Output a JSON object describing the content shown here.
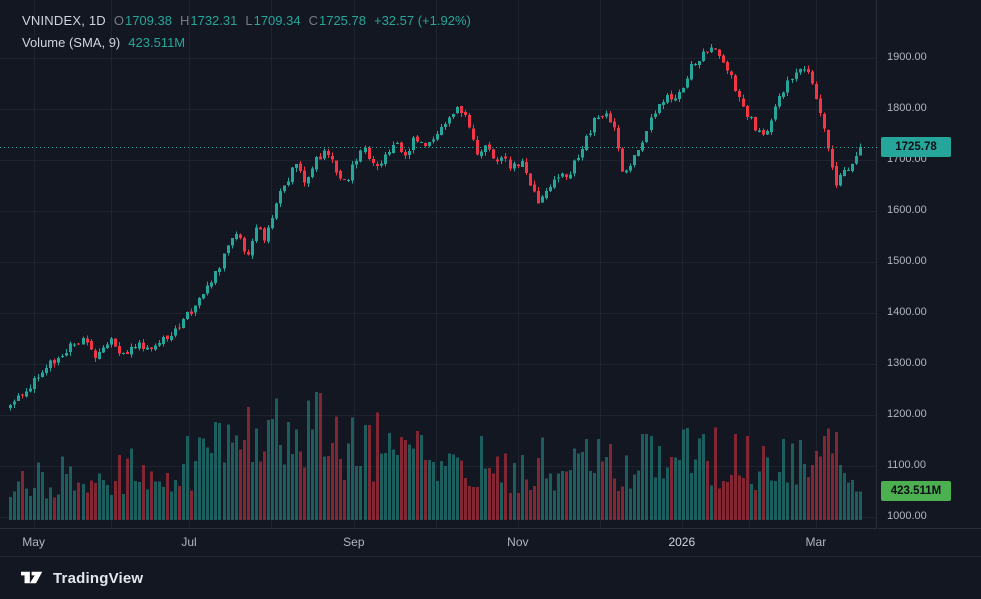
{
  "legend": {
    "title": "VNINDEX, 1D",
    "ohlc": [
      {
        "label": "O",
        "value": "1709.38"
      },
      {
        "label": "H",
        "value": "1732.31"
      },
      {
        "label": "L",
        "value": "1709.34"
      },
      {
        "label": "C",
        "value": "1725.78"
      }
    ],
    "change": "+32.57 (+1.92%)",
    "volume_title": "Volume (SMA, 9)",
    "volume_value": "423.511M"
  },
  "badges": {
    "price": "1725.78",
    "volume": "423.511M"
  },
  "footer": {
    "brand": "TradingView"
  },
  "colors": {
    "bg": "#131722",
    "up": "#26a69a",
    "down": "#f23645",
    "vol_up": "rgba(38,166,154,0.5)",
    "vol_down": "rgba(242,54,69,0.5)",
    "grid": "#1e2330",
    "border": "#2a2e39",
    "axis_text": "#b2b5be",
    "text": "#d1d4dc",
    "muted": "#787b86",
    "value_green": "#26a69a",
    "price_badge_bg": "#26a69a",
    "volume_badge_bg": "#4caf50",
    "badge_text": "#0b0e14"
  },
  "chart_data": {
    "type": "candlestick",
    "symbol": "VNINDEX",
    "interval": "1D",
    "title": "VNINDEX, 1D",
    "legend_position": "top-left",
    "grid": true,
    "last": {
      "open": 1709.38,
      "high": 1732.31,
      "low": 1709.34,
      "close": 1725.78,
      "change": 32.57,
      "change_pct": 1.92
    },
    "volume_sma": {
      "length": 9,
      "value_label": "423.511M"
    },
    "ylim": [
      978,
      2014
    ],
    "y_ticks": [
      1900,
      1800,
      1700,
      1600,
      1500,
      1400,
      1300,
      1200,
      1100,
      1000
    ],
    "x_ticks": [
      {
        "label": "May",
        "t": 0.03
      },
      {
        "label": "Jul",
        "t": 0.212
      },
      {
        "label": "Sep",
        "t": 0.405
      },
      {
        "label": "Nov",
        "t": 0.597
      },
      {
        "label": "2026",
        "t": 0.789,
        "year": true
      },
      {
        "label": "Mar",
        "t": 0.946
      }
    ],
    "last_price_line": 1725.78,
    "num_candles": 212,
    "seed": 5,
    "noise": 8.5,
    "wick": 8,
    "price_path": [
      [
        0.0,
        1216
      ],
      [
        0.02,
        1252
      ],
      [
        0.042,
        1290
      ],
      [
        0.065,
        1328
      ],
      [
        0.085,
        1346
      ],
      [
        0.1,
        1312
      ],
      [
        0.118,
        1342
      ],
      [
        0.132,
        1316
      ],
      [
        0.148,
        1340
      ],
      [
        0.163,
        1328
      ],
      [
        0.18,
        1348
      ],
      [
        0.196,
        1370
      ],
      [
        0.212,
        1400
      ],
      [
        0.228,
        1442
      ],
      [
        0.244,
        1486
      ],
      [
        0.257,
        1530
      ],
      [
        0.268,
        1556
      ],
      [
        0.278,
        1512
      ],
      [
        0.29,
        1568
      ],
      [
        0.3,
        1542
      ],
      [
        0.312,
        1615
      ],
      [
        0.324,
        1658
      ],
      [
        0.336,
        1690
      ],
      [
        0.348,
        1652
      ],
      [
        0.36,
        1698
      ],
      [
        0.372,
        1718
      ],
      [
        0.384,
        1680
      ],
      [
        0.396,
        1656
      ],
      [
        0.405,
        1692
      ],
      [
        0.417,
        1722
      ],
      [
        0.429,
        1682
      ],
      [
        0.441,
        1708
      ],
      [
        0.453,
        1734
      ],
      [
        0.465,
        1702
      ],
      [
        0.477,
        1748
      ],
      [
        0.489,
        1722
      ],
      [
        0.502,
        1758
      ],
      [
        0.515,
        1782
      ],
      [
        0.527,
        1812
      ],
      [
        0.539,
        1772
      ],
      [
        0.551,
        1702
      ],
      [
        0.561,
        1726
      ],
      [
        0.571,
        1696
      ],
      [
        0.581,
        1712
      ],
      [
        0.59,
        1682
      ],
      [
        0.6,
        1700
      ],
      [
        0.61,
        1662
      ],
      [
        0.622,
        1612
      ],
      [
        0.633,
        1648
      ],
      [
        0.644,
        1672
      ],
      [
        0.654,
        1662
      ],
      [
        0.665,
        1696
      ],
      [
        0.676,
        1738
      ],
      [
        0.688,
        1778
      ],
      [
        0.7,
        1796
      ],
      [
        0.712,
        1758
      ],
      [
        0.722,
        1670
      ],
      [
        0.732,
        1700
      ],
      [
        0.742,
        1732
      ],
      [
        0.753,
        1775
      ],
      [
        0.764,
        1812
      ],
      [
        0.774,
        1830
      ],
      [
        0.783,
        1812
      ],
      [
        0.792,
        1850
      ],
      [
        0.801,
        1888
      ],
      [
        0.81,
        1902
      ],
      [
        0.819,
        1912
      ],
      [
        0.828,
        1922
      ],
      [
        0.838,
        1886
      ],
      [
        0.848,
        1862
      ],
      [
        0.858,
        1822
      ],
      [
        0.868,
        1788
      ],
      [
        0.878,
        1758
      ],
      [
        0.888,
        1748
      ],
      [
        0.898,
        1792
      ],
      [
        0.908,
        1832
      ],
      [
        0.918,
        1862
      ],
      [
        0.928,
        1886
      ],
      [
        0.938,
        1870
      ],
      [
        0.948,
        1818
      ],
      [
        0.958,
        1760
      ],
      [
        0.966,
        1695
      ],
      [
        0.972,
        1655
      ],
      [
        0.98,
        1690
      ],
      [
        0.988,
        1672
      ],
      [
        0.994,
        1702
      ],
      [
        1.0,
        1724
      ]
    ],
    "volume_path": [
      [
        0.0,
        0.3
      ],
      [
        0.06,
        0.34
      ],
      [
        0.12,
        0.36
      ],
      [
        0.18,
        0.4
      ],
      [
        0.22,
        0.46
      ],
      [
        0.26,
        0.55
      ],
      [
        0.285,
        0.7
      ],
      [
        0.299,
        1.0
      ],
      [
        0.31,
        0.62
      ],
      [
        0.322,
        0.85
      ],
      [
        0.335,
        0.6
      ],
      [
        0.35,
        0.62
      ],
      [
        0.368,
        0.78
      ],
      [
        0.385,
        0.55
      ],
      [
        0.42,
        0.6
      ],
      [
        0.455,
        0.5
      ],
      [
        0.49,
        0.46
      ],
      [
        0.53,
        0.52
      ],
      [
        0.565,
        0.44
      ],
      [
        0.6,
        0.4
      ],
      [
        0.64,
        0.44
      ],
      [
        0.68,
        0.42
      ],
      [
        0.72,
        0.44
      ],
      [
        0.755,
        0.46
      ],
      [
        0.79,
        0.55
      ],
      [
        0.82,
        0.5
      ],
      [
        0.855,
        0.44
      ],
      [
        0.89,
        0.42
      ],
      [
        0.92,
        0.5
      ],
      [
        0.945,
        0.46
      ],
      [
        0.965,
        0.52
      ],
      [
        1.0,
        0.22
      ]
    ]
  }
}
